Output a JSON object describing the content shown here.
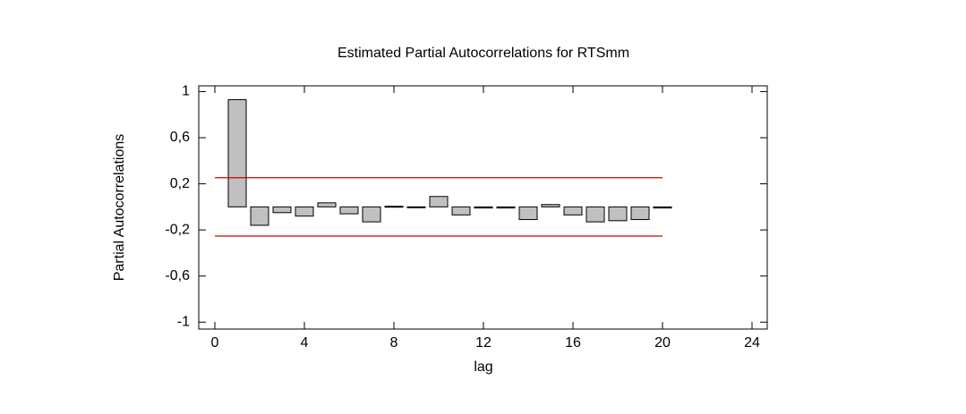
{
  "chart_data": {
    "type": "bar",
    "title": "Estimated Partial Autocorrelations for RTSmm",
    "x_label": "lag",
    "y_label": "Partial Autocorrelations",
    "x": [
      1,
      2,
      3,
      4,
      5,
      6,
      7,
      8,
      9,
      10,
      11,
      12,
      13,
      14,
      15,
      16,
      17,
      18,
      19,
      20
    ],
    "values": [
      0.93,
      -0.16,
      -0.05,
      -0.08,
      0.035,
      -0.06,
      -0.13,
      0.005,
      0,
      0.09,
      -0.07,
      -0.01,
      -0.01,
      -0.11,
      0.02,
      -0.07,
      -0.13,
      -0.12,
      -0.11,
      -0.01
    ],
    "color": "#c0c0c0",
    "confidence_limits": [
      0.253,
      -0.253
    ],
    "limit_color": "#cc0000",
    "limit_x": [
      0,
      20
    ],
    "xlim": [
      -0.72,
      24.68
    ],
    "xticks": [
      0,
      4,
      8,
      12,
      16,
      20,
      24
    ],
    "ylim": [
      -1.06,
      1.05
    ],
    "yticks": [
      {
        "value": 1,
        "label": "1"
      },
      {
        "value": 0.6,
        "label": "0,6"
      },
      {
        "value": 0.2,
        "label": "0,2"
      },
      {
        "value": -0.2,
        "label": "-0,2"
      },
      {
        "value": -0.6,
        "label": "-0,6"
      },
      {
        "value": -1,
        "label": "-1"
      }
    ]
  }
}
